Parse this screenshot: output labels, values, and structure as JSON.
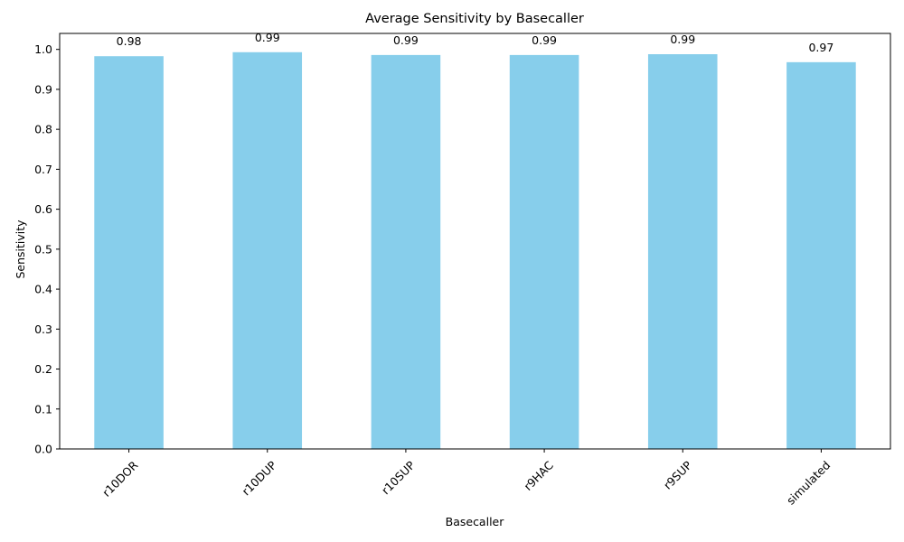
{
  "chart_data": {
    "type": "bar",
    "title": "Average Sensitivity by Basecaller",
    "xlabel": "Basecaller",
    "ylabel": "Sensitivity",
    "categories": [
      "r10DOR",
      "r10DUP",
      "r10SUP",
      "r9HAC",
      "r9SUP",
      "simulated"
    ],
    "values": [
      0.983,
      0.993,
      0.986,
      0.986,
      0.988,
      0.968
    ],
    "data_labels": [
      "0.98",
      "0.99",
      "0.99",
      "0.99",
      "0.99",
      "0.97"
    ],
    "ylim": [
      0,
      1.04
    ],
    "yticks": [
      0.0,
      0.1,
      0.2,
      0.3,
      0.4,
      0.5,
      0.6,
      0.7,
      0.8,
      0.9,
      1.0
    ],
    "ytick_labels": [
      "0.0",
      "0.1",
      "0.2",
      "0.3",
      "0.4",
      "0.5",
      "0.6",
      "0.7",
      "0.8",
      "0.9",
      "1.0"
    ],
    "xtick_rotation": 45,
    "bar_color": "#87CEEB",
    "grid": false,
    "legend": "none"
  }
}
